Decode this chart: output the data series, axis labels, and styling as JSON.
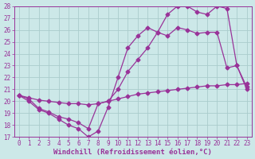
{
  "xlabel": "Windchill (Refroidissement éolien,°C)",
  "bg_color": "#cce8e8",
  "grid_color": "#aacccc",
  "line_color": "#993399",
  "xlim": [
    -0.5,
    23.5
  ],
  "ylim": [
    17,
    28
  ],
  "yticks": [
    17,
    18,
    19,
    20,
    21,
    22,
    23,
    24,
    25,
    26,
    27,
    28
  ],
  "xticks": [
    0,
    1,
    2,
    3,
    4,
    5,
    6,
    7,
    8,
    9,
    10,
    11,
    12,
    13,
    14,
    15,
    16,
    17,
    18,
    19,
    20,
    21,
    22,
    23
  ],
  "line1_x": [
    0,
    1,
    2,
    3,
    4,
    5,
    6,
    7,
    8,
    9,
    10,
    11,
    12,
    13,
    14,
    15,
    16,
    17,
    18,
    19,
    20,
    21,
    22,
    23
  ],
  "line1_y": [
    20.5,
    20.3,
    20.1,
    20.0,
    19.9,
    19.8,
    19.8,
    19.7,
    19.8,
    20.0,
    20.2,
    20.4,
    20.6,
    20.7,
    20.8,
    20.9,
    21.0,
    21.1,
    21.2,
    21.3,
    21.3,
    21.4,
    21.4,
    21.5
  ],
  "line2_x": [
    0,
    1,
    2,
    3,
    4,
    5,
    6,
    7,
    8,
    9,
    10,
    11,
    12,
    13,
    14,
    15,
    16,
    17,
    18,
    19,
    20,
    21,
    22,
    23
  ],
  "line2_y": [
    20.5,
    20.0,
    19.3,
    19.0,
    18.5,
    18.0,
    17.7,
    17.0,
    17.5,
    19.5,
    22.0,
    24.5,
    25.5,
    26.2,
    25.8,
    25.5,
    26.2,
    26.0,
    25.7,
    25.8,
    25.8,
    22.8,
    23.0,
    21.0
  ],
  "line3_x": [
    0,
    1,
    2,
    3,
    4,
    5,
    6,
    7,
    8,
    9,
    10,
    11,
    12,
    13,
    14,
    15,
    16,
    17,
    18,
    19,
    20,
    21,
    22,
    23
  ],
  "line3_y": [
    20.5,
    20.2,
    19.4,
    19.1,
    18.7,
    18.5,
    18.2,
    17.7,
    19.8,
    20.0,
    21.0,
    22.5,
    23.5,
    24.5,
    25.8,
    27.3,
    28.0,
    28.0,
    27.5,
    27.3,
    28.0,
    27.8,
    23.0,
    21.2
  ],
  "marker": "D",
  "markersize": 2.5,
  "linewidth": 0.9,
  "tick_fontsize": 5.5,
  "xlabel_fontsize": 6.5
}
